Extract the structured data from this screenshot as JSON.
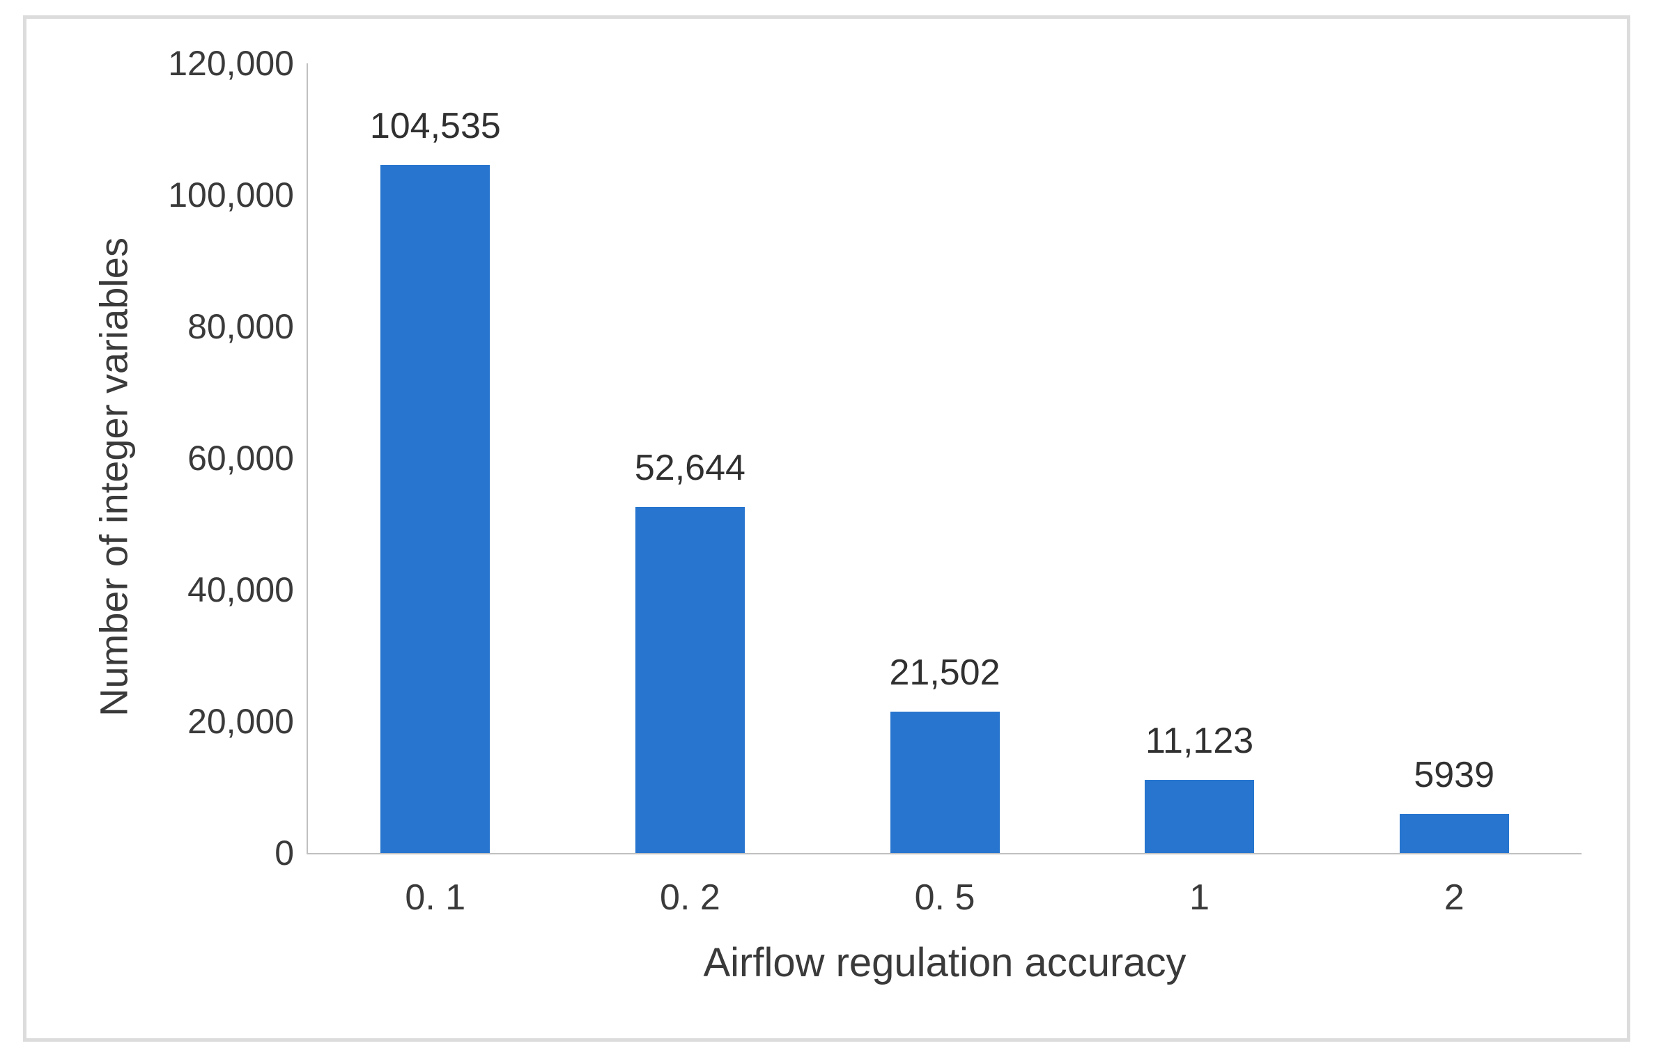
{
  "chart_data": {
    "type": "bar",
    "title": "",
    "xlabel": "Airflow regulation accuracy",
    "ylabel": "Number of integer variables",
    "categories": [
      "0. 1",
      "0. 2",
      "0. 5",
      "1",
      "2"
    ],
    "values": [
      104535,
      52644,
      21502,
      11123,
      5939
    ],
    "bar_labels": [
      "104,535",
      "52,644",
      "21,502",
      "11,123",
      "5939"
    ],
    "ylim": [
      0,
      120000
    ],
    "ytick_interval": 20000,
    "yticks": [
      {
        "value": 0,
        "label": "0"
      },
      {
        "value": 20000,
        "label": "20,000"
      },
      {
        "value": 40000,
        "label": "40,000"
      },
      {
        "value": 60000,
        "label": "60,000"
      },
      {
        "value": 80000,
        "label": "80,000"
      },
      {
        "value": 100000,
        "label": "100,000"
      },
      {
        "value": 120000,
        "label": "120,000"
      }
    ],
    "grid": false,
    "legend": false,
    "colors": {
      "bar": "#2775ce",
      "axis_line": "#c0c0c0",
      "tick_text": "#3a3a3a",
      "value_label_text": "#303030",
      "frame_border": "#dcdcdc",
      "background": "#ffffff"
    }
  }
}
